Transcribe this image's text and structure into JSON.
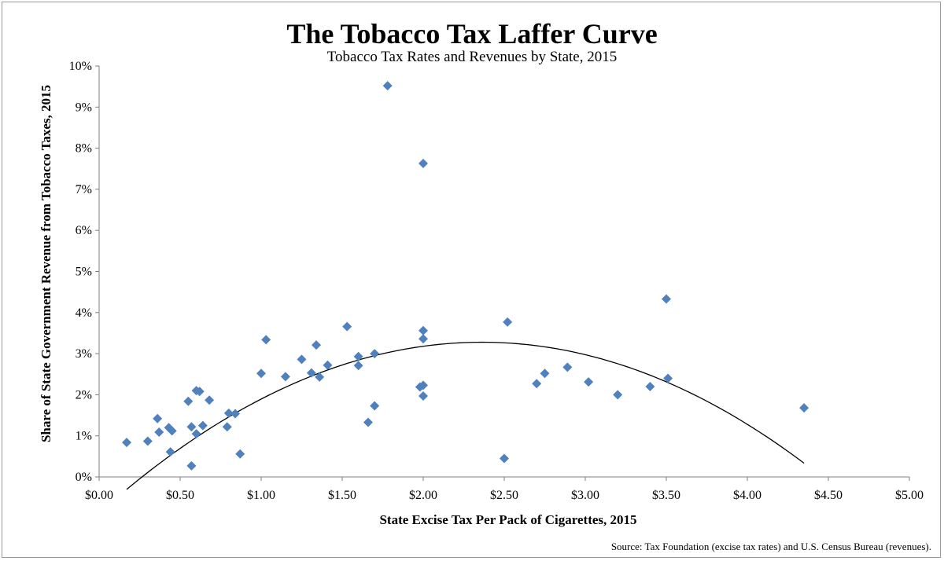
{
  "chart_data": {
    "type": "scatter",
    "title": "The Tobacco Tax Laffer Curve",
    "subtitle": "Tobacco Tax Rates and Revenues by State, 2015",
    "xlabel": "State Excise Tax Per Pack of Cigarettes, 2015",
    "ylabel": "Share of State Government Revenue from Tobacco Taxes, 2015",
    "source": "Source: Tax Foundation (excise tax rates) and U.S. Census Bureau (revenues).",
    "xlim": [
      0,
      5
    ],
    "ylim": [
      0,
      10
    ],
    "x_ticks": [
      "$0.00",
      "$0.50",
      "$1.00",
      "$1.50",
      "$2.00",
      "$2.50",
      "$3.00",
      "$3.50",
      "$4.00",
      "$4.50",
      "$5.00"
    ],
    "y_ticks": [
      "0%",
      "1%",
      "2%",
      "3%",
      "4%",
      "5%",
      "6%",
      "7%",
      "8%",
      "9%",
      "10%"
    ],
    "marker_color": "#4f81bd",
    "trendline": {
      "type": "quadratic",
      "a": -0.745,
      "b": 3.52,
      "c": -0.88,
      "x_range": [
        0.17,
        4.35
      ]
    },
    "points": [
      [
        0.17,
        0.84
      ],
      [
        0.3,
        0.87
      ],
      [
        0.36,
        1.42
      ],
      [
        0.37,
        1.09
      ],
      [
        0.43,
        1.2
      ],
      [
        0.44,
        0.61
      ],
      [
        0.45,
        1.12
      ],
      [
        0.55,
        1.84
      ],
      [
        0.57,
        0.27
      ],
      [
        0.57,
        1.22
      ],
      [
        0.6,
        2.1
      ],
      [
        0.6,
        1.05
      ],
      [
        0.62,
        2.08
      ],
      [
        0.64,
        1.25
      ],
      [
        0.68,
        1.87
      ],
      [
        0.79,
        1.22
      ],
      [
        0.8,
        1.55
      ],
      [
        0.84,
        1.54
      ],
      [
        0.87,
        0.56
      ],
      [
        1.0,
        2.52
      ],
      [
        1.03,
        3.34
      ],
      [
        1.15,
        2.44
      ],
      [
        1.25,
        2.86
      ],
      [
        1.31,
        2.53
      ],
      [
        1.34,
        3.21
      ],
      [
        1.36,
        2.43
      ],
      [
        1.41,
        2.72
      ],
      [
        1.53,
        3.66
      ],
      [
        1.6,
        2.93
      ],
      [
        1.6,
        2.71
      ],
      [
        1.66,
        1.33
      ],
      [
        1.7,
        3.0
      ],
      [
        1.7,
        1.73
      ],
      [
        1.78,
        9.52
      ],
      [
        1.98,
        2.19
      ],
      [
        2.0,
        7.63
      ],
      [
        2.0,
        3.56
      ],
      [
        2.0,
        3.36
      ],
      [
        2.0,
        2.23
      ],
      [
        2.0,
        1.97
      ],
      [
        2.5,
        0.45
      ],
      [
        2.52,
        3.77
      ],
      [
        2.7,
        2.27
      ],
      [
        2.75,
        2.52
      ],
      [
        2.89,
        2.67
      ],
      [
        3.02,
        2.31
      ],
      [
        3.2,
        2.0
      ],
      [
        3.4,
        2.2
      ],
      [
        3.5,
        4.33
      ],
      [
        3.51,
        2.4
      ],
      [
        4.35,
        1.68
      ]
    ]
  }
}
